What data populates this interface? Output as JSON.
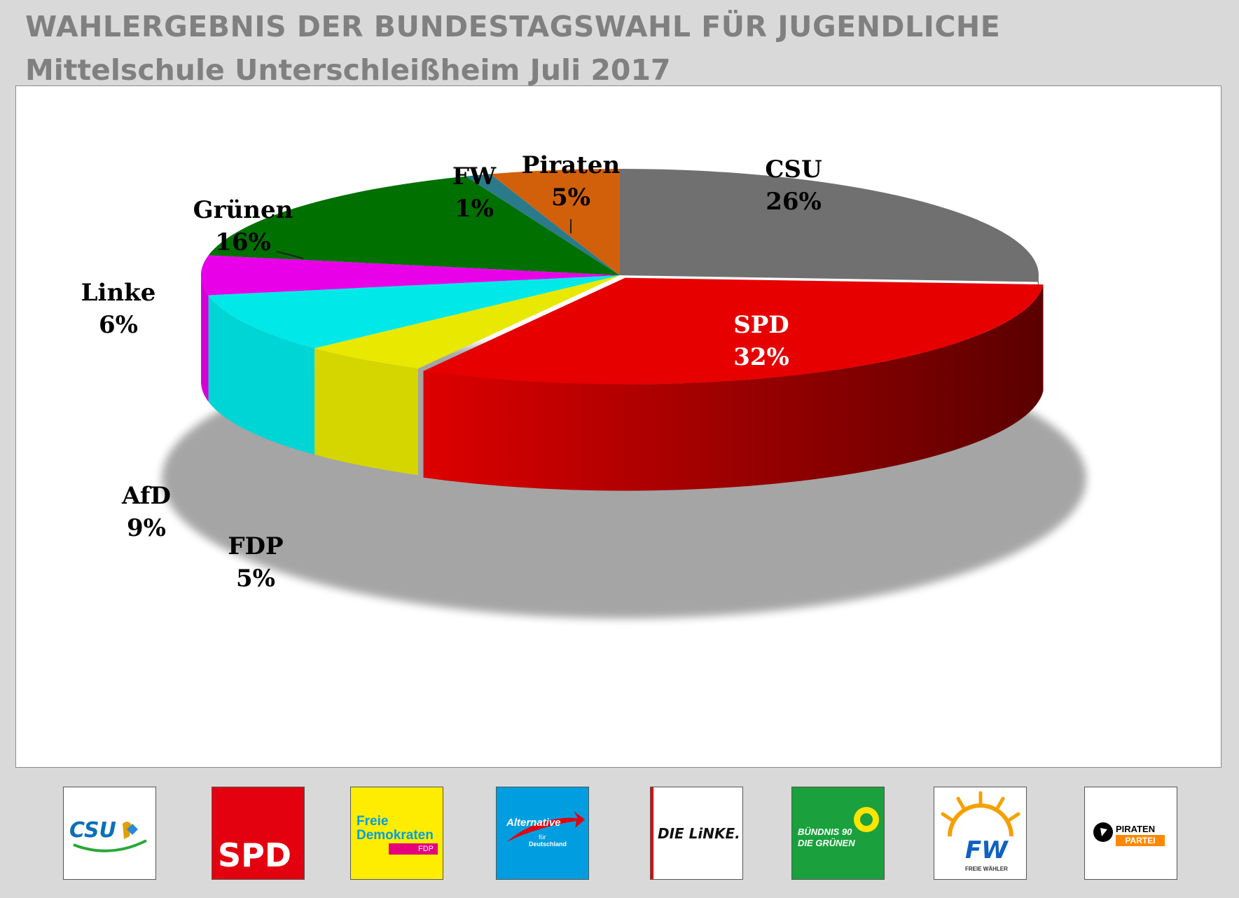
{
  "chart_data": {
    "type": "pie",
    "title": "WAHLERGEBNIS DER BUNDESTAGSWAHL FÜR JUGENDLICHE",
    "subtitle": "Mittelschule Unterschleißheim Juli 2017",
    "slices": [
      {
        "label": "CSU",
        "value": 26,
        "value_label": "26%",
        "color": "#707070"
      },
      {
        "label": "SPD",
        "value": 32,
        "value_label": "32%",
        "color": "#e60000"
      },
      {
        "label": "FDP",
        "value": 5,
        "value_label": "5%",
        "color": "#e8e800"
      },
      {
        "label": "AfD",
        "value": 9,
        "value_label": "9%",
        "color": "#00e8e8"
      },
      {
        "label": "Linke",
        "value": 6,
        "value_label": "6%",
        "color": "#e800e8"
      },
      {
        "label": "Grünen",
        "value": 16,
        "value_label": "16%",
        "color": "#007000"
      },
      {
        "label": "FW",
        "value": 1,
        "value_label": "1%",
        "color": "#2a7a8c"
      },
      {
        "label": "Piraten",
        "value": 5,
        "value_label": "5%",
        "color": "#d2600a"
      }
    ],
    "style": "3d-exploded-pie"
  },
  "logos": [
    {
      "party": "CSU",
      "text": "CSU",
      "icon": "csu-lion-icon"
    },
    {
      "party": "SPD",
      "text": "SPD",
      "icon": "spd-logo"
    },
    {
      "party": "FDP",
      "lines": [
        "Freie",
        "Demokraten"
      ],
      "badge": "FDP",
      "icon": "fdp-logo"
    },
    {
      "party": "AfD",
      "lines": [
        "Alternative",
        "für",
        "Deutschland"
      ],
      "icon": "afd-arrow-icon"
    },
    {
      "party": "Linke",
      "text": "DIE LiNKE.",
      "icon": "linke-logo"
    },
    {
      "party": "Grünen",
      "lines": [
        "BÜNDNIS 90",
        "DIE GRÜNEN"
      ],
      "icon": "sunflower-icon"
    },
    {
      "party": "FW",
      "text": "FW",
      "sub": "FREIE WÄHLER",
      "icon": "sun-icon"
    },
    {
      "party": "Piraten",
      "lines": [
        "PIRATEN",
        "PARTEI"
      ],
      "icon": "pirate-sail-icon"
    }
  ]
}
